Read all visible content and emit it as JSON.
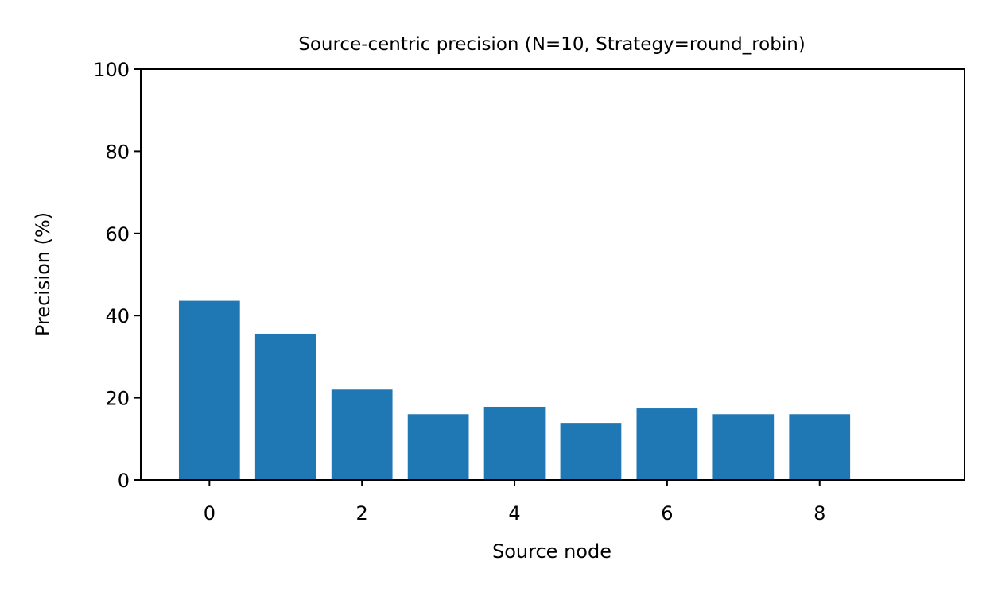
{
  "chart_data": {
    "type": "bar",
    "title": "Source-centric precision (N=10, Strategy=round_robin)",
    "xlabel": "Source node",
    "ylabel": "Precision (%)",
    "x": [
      0,
      1,
      2,
      3,
      4,
      5,
      6,
      7,
      8
    ],
    "values": [
      43.6,
      35.6,
      22.0,
      16.0,
      17.8,
      13.9,
      17.4,
      16.0,
      16.0
    ],
    "xlim": [
      -0.9,
      9.9
    ],
    "ylim": [
      0,
      100
    ],
    "xticks": [
      0,
      2,
      4,
      6,
      8
    ],
    "yticks": [
      0,
      20,
      40,
      60,
      80,
      100
    ],
    "color": "#1f77b4",
    "grid": false
  }
}
